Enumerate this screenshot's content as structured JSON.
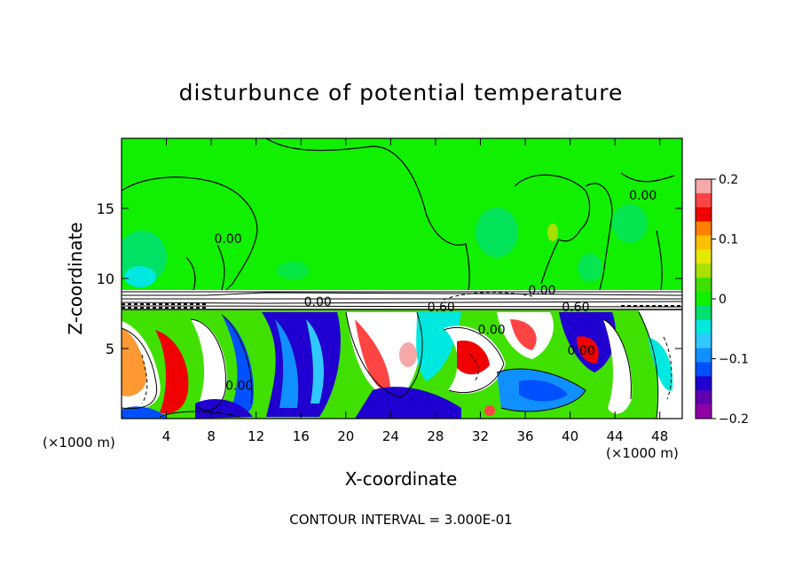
{
  "chart_data": {
    "type": "heatmap",
    "title": "disturbunce of potential temperature",
    "xlabel": "X-coordinate",
    "ylabel": "Z-coordinate",
    "x_unit_label": "(×1000 m)",
    "x_unit_label_right": "(×1000 m)",
    "footer": "CONTOUR INTERVAL = 3.000E-01",
    "xlim": [
      0,
      50
    ],
    "ylim": [
      0,
      20
    ],
    "x_ticks": [
      4,
      8,
      12,
      16,
      20,
      24,
      28,
      32,
      36,
      40,
      44,
      48
    ],
    "y_ticks": [
      5,
      10,
      15
    ],
    "x_tick_labels": [
      "4",
      "8",
      "12",
      "16",
      "20",
      "24",
      "28",
      "32",
      "36",
      "40",
      "44",
      "48"
    ],
    "y_tick_labels": [
      "5",
      "10",
      "15"
    ],
    "colorbar": {
      "min": -0.2,
      "max": 0.2,
      "ticks": [
        0.2,
        0.1,
        0,
        -0.1,
        -0.2
      ],
      "tick_labels": [
        "0.2",
        "0.1",
        "0",
        "−0.1",
        "−0.2"
      ],
      "colors": [
        "#f7a8a8",
        "#ff4444",
        "#f00000",
        "#ff8000",
        "#ffc000",
        "#e8e800",
        "#a8e000",
        "#40e000",
        "#10f000",
        "#00e070",
        "#00e8e0",
        "#30c8ff",
        "#1090ff",
        "#0050ff",
        "#2000d0",
        "#6000b0",
        "#9000a8"
      ]
    },
    "contour_labels": [
      {
        "text": "0.00",
        "x": 9.5,
        "y": 12.8
      },
      {
        "text": "0.00",
        "x": 46.5,
        "y": 15.9
      },
      {
        "text": "0.00",
        "x": 37.5,
        "y": 9.1
      },
      {
        "text": "0.60",
        "x": 28.5,
        "y": 7.9
      },
      {
        "text": "0.60",
        "x": 40.5,
        "y": 7.9
      },
      {
        "text": "0.00",
        "x": 33.0,
        "y": 6.3
      },
      {
        "text": "0.00",
        "x": 41.0,
        "y": 4.8
      },
      {
        "text": "0.00",
        "x": 10.5,
        "y": 2.3
      },
      {
        "text": "0.00",
        "x": 17.5,
        "y": 8.3
      }
    ],
    "grid": false
  }
}
